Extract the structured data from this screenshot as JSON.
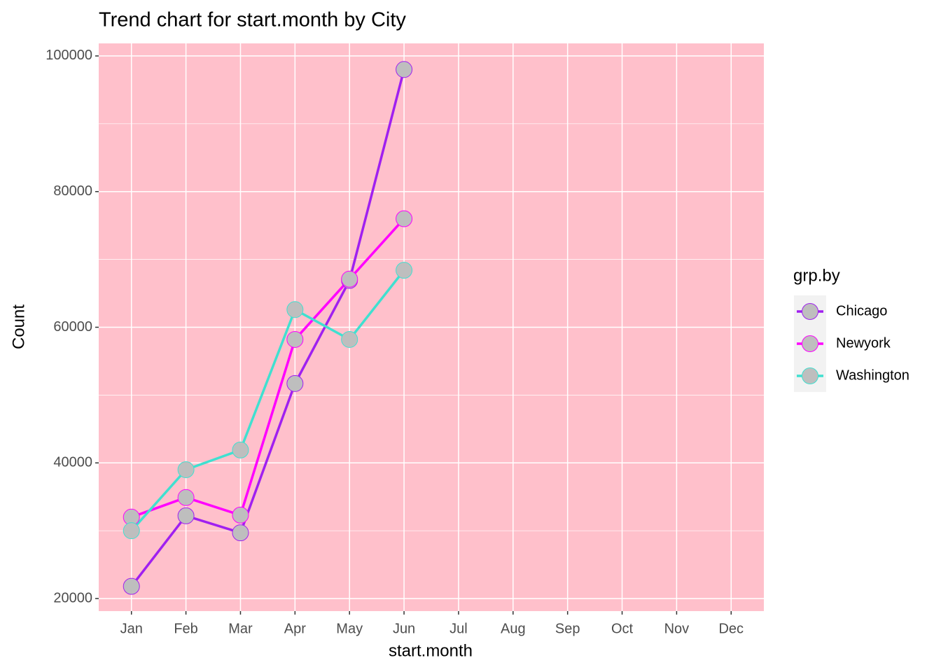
{
  "chart_data": {
    "type": "line",
    "title": "Trend chart for start.month by City",
    "x_label": "start.month",
    "y_label": "Count",
    "legend_title": "grp.by",
    "categories": [
      "Jan",
      "Feb",
      "Mar",
      "Apr",
      "May",
      "Jun",
      "Jul",
      "Aug",
      "Sep",
      "Oct",
      "Nov",
      "Dec"
    ],
    "series": [
      {
        "name": "Chicago",
        "color": "#a020f0",
        "values": [
          21800,
          32200,
          29700,
          51700,
          66900,
          98000,
          null,
          null,
          null,
          null,
          null,
          null
        ]
      },
      {
        "name": "Newyork",
        "color": "#ff00ff",
        "values": [
          32000,
          34900,
          32300,
          58200,
          67100,
          76000,
          null,
          null,
          null,
          null,
          null,
          null
        ]
      },
      {
        "name": "Washington",
        "color": "#40e0d0",
        "values": [
          30000,
          39000,
          41900,
          62600,
          58200,
          68400,
          null,
          null,
          null,
          null,
          null,
          null
        ]
      }
    ],
    "marker_fill": "#bebebe",
    "ylim": [
      18150,
      101850
    ],
    "yticks": [
      20000,
      40000,
      60000,
      80000,
      100000
    ],
    "grid": true,
    "panel_color": "#ffc0cb",
    "legend_position": "right"
  }
}
